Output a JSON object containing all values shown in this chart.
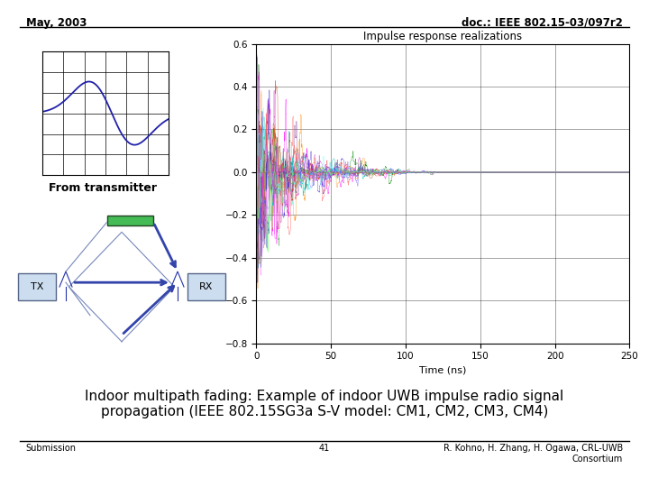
{
  "title_left": "May, 2003",
  "title_right": "doc.: IEEE 802.15-03/097r2",
  "chart_title": "Impulse response realizations",
  "xlabel": "Time (ns)",
  "xlim": [
    0,
    250
  ],
  "ylim": [
    -0.8,
    0.6
  ],
  "yticks": [
    -0.8,
    -0.6,
    -0.4,
    -0.2,
    0,
    0.2,
    0.4,
    0.6
  ],
  "xticks": [
    0,
    50,
    100,
    150,
    200,
    250
  ],
  "body_text": "Indoor multipath fading: Example of indoor UWB impulse radio signal\npropagation (IEEE 802.15SG3a S-V model: CM1, CM2, CM3, CM4)",
  "footer_left": "Submission",
  "footer_center": "41",
  "footer_right": "R. Kohno, H. Zhang, H. Ogawa, CRL-UWB\nConsortium",
  "bg_color": "#ffffff"
}
